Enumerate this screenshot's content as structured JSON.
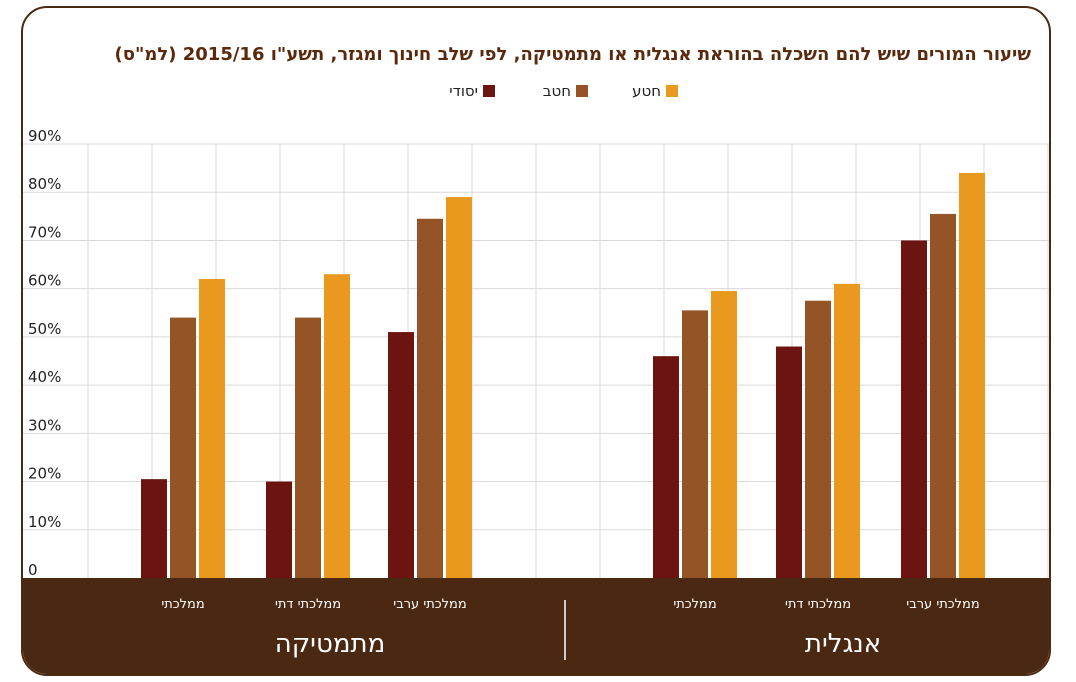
{
  "chart_data": {
    "type": "bar",
    "title": "שיעור המורים שיש להם השכלה בהוראת אנגלית או מתמטיקה, לפי שלב חינוך ומגזר, תשע\"ו 2015/16 (למ\"ס)",
    "ylim": [
      0,
      90
    ],
    "y_ticks": [
      "0",
      "10%",
      "20%",
      "30%",
      "40%",
      "50%",
      "60%",
      "70%",
      "80%",
      "90%"
    ],
    "legend_position": "top-center",
    "grid": true,
    "groups": [
      {
        "name": "אנגלית",
        "categories": [
          "ממלכתי ערבי",
          "ממלכתי דתי",
          "ממלכתי"
        ],
        "series": [
          {
            "name": "יסודי",
            "color": "#6b1410",
            "values": [
              70,
              48,
              46
            ]
          },
          {
            "name": "חטב",
            "color": "#955425",
            "values": [
              75.5,
              57.5,
              55.5
            ]
          },
          {
            "name": "חטע",
            "color": "#e8991e",
            "values": [
              84,
              61,
              59.5
            ]
          }
        ]
      },
      {
        "name": "מתמטיקה",
        "categories": [
          "ממלכתי ערבי",
          "ממלכתי דתי",
          "ממלכתי"
        ],
        "series": [
          {
            "name": "יסודי",
            "color": "#6b1410",
            "values": [
              51,
              20,
              20.5
            ]
          },
          {
            "name": "חטב",
            "color": "#955425",
            "values": [
              74.5,
              54,
              54
            ]
          },
          {
            "name": "חטע",
            "color": "#e8991e",
            "values": [
              79,
              63,
              62
            ]
          }
        ]
      }
    ],
    "legend": [
      {
        "name": "חטע",
        "color": "#e8991e"
      },
      {
        "name": "חטב",
        "color": "#955425"
      },
      {
        "name": "יסודי",
        "color": "#6b1410"
      }
    ]
  },
  "colors": {
    "title": "#5a2a0e",
    "footer": "#4a2812",
    "grid": "#d9d9d9",
    "frame": "#4a2a12"
  }
}
